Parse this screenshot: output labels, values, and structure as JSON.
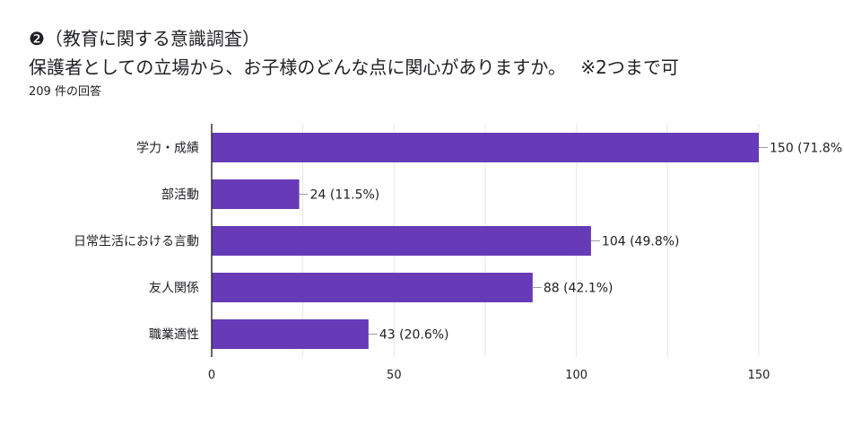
{
  "header": {
    "title": "❷（教育に関する意識調査）",
    "question": "保護者としての立場から、お子様のどんな点に関心がありますか。　 ※2つまで可",
    "response_count": "209 件の回答"
  },
  "colors": {
    "bar": "#673ab7",
    "grid": "#e6e6e6",
    "axis": "#333333",
    "text": "#202124"
  },
  "chart_data": {
    "type": "bar",
    "orientation": "horizontal",
    "categories": [
      "学力・成績",
      "部活動",
      "日常生活における言動",
      "友人関係",
      "職業適性"
    ],
    "values": [
      150,
      24,
      104,
      88,
      43
    ],
    "data_labels": [
      "150 (71.8%",
      "24 (11.5%)",
      "104 (49.8%)",
      "88 (42.1%)",
      "43 (20.6%)"
    ],
    "xlim": [
      0,
      150
    ],
    "x_ticks": [
      0,
      50,
      100,
      150
    ],
    "grid": true,
    "legend": "none"
  }
}
